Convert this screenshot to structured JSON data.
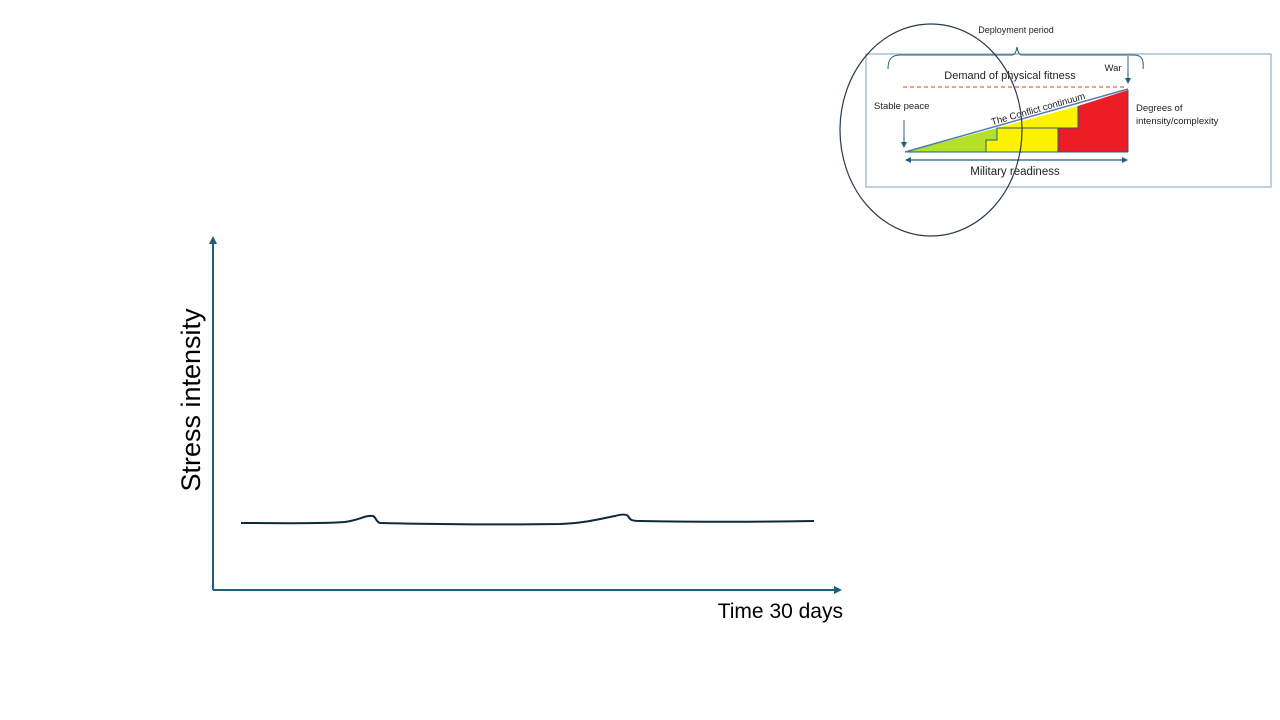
{
  "colors": {
    "axis": "#1f5f7a",
    "curve": "#0f2a3a",
    "box_border": "#8fb3c6",
    "circle": "#2b3b4a",
    "dashed": "#e06a3a",
    "green": "#b5e02a",
    "yellow": "#fff200",
    "red": "#ee1c25",
    "slope": "#4f7fb0"
  },
  "main_chart": {
    "y_axis_label": "Stress intensity",
    "x_axis_label": "Time 30 days"
  },
  "inset": {
    "deployment_period": "Deployment period",
    "war": "War",
    "demand": "Demand of physical fitness",
    "stable_peace": "Stable peace",
    "conflict_continuum": "The Conflict continuum",
    "degrees_line1": "Degrees of",
    "degrees_line2": "intensity/complexity",
    "military_readiness": "Military readiness"
  }
}
